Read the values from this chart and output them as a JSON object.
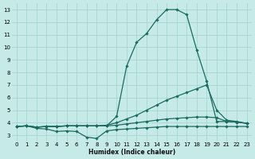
{
  "xlabel": "Humidex (Indice chaleur)",
  "bg_color": "#c5eae8",
  "grid_color": "#a8d5d2",
  "line_color": "#1a6b60",
  "xlim": [
    -0.5,
    23.5
  ],
  "ylim": [
    2.5,
    13.5
  ],
  "xticks": [
    0,
    1,
    2,
    3,
    4,
    5,
    6,
    7,
    8,
    9,
    10,
    11,
    12,
    13,
    14,
    15,
    16,
    17,
    18,
    19,
    20,
    21,
    22,
    23
  ],
  "yticks": [
    3,
    4,
    5,
    6,
    7,
    8,
    9,
    10,
    11,
    12,
    13
  ],
  "line_peak_x": [
    0,
    1,
    2,
    3,
    4,
    5,
    6,
    7,
    8,
    9,
    10,
    11,
    12,
    13,
    14,
    15,
    16,
    17,
    18,
    19,
    20,
    21,
    22,
    23
  ],
  "line_peak_y": [
    3.7,
    3.75,
    3.65,
    3.7,
    3.7,
    3.75,
    3.75,
    3.75,
    3.75,
    3.75,
    4.5,
    8.5,
    10.4,
    11.1,
    12.2,
    13.0,
    13.0,
    12.6,
    9.8,
    7.3,
    4.1,
    4.1,
    4.05,
    3.95
  ],
  "line_diag_x": [
    0,
    1,
    2,
    3,
    4,
    5,
    6,
    7,
    8,
    9,
    10,
    11,
    12,
    13,
    14,
    15,
    16,
    17,
    18,
    19,
    20,
    21,
    22,
    23
  ],
  "line_diag_y": [
    3.7,
    3.75,
    3.65,
    3.7,
    3.7,
    3.75,
    3.75,
    3.75,
    3.75,
    3.8,
    4.0,
    4.3,
    4.6,
    5.0,
    5.4,
    5.8,
    6.1,
    6.4,
    6.7,
    7.0,
    5.0,
    4.2,
    4.1,
    3.95
  ],
  "line_flat_x": [
    0,
    1,
    2,
    3,
    4,
    5,
    6,
    7,
    8,
    9,
    10,
    11,
    12,
    13,
    14,
    15,
    16,
    17,
    18,
    19,
    20,
    21,
    22,
    23
  ],
  "line_flat_y": [
    3.7,
    3.75,
    3.65,
    3.7,
    3.7,
    3.75,
    3.75,
    3.75,
    3.75,
    3.75,
    3.8,
    3.9,
    4.0,
    4.1,
    4.2,
    4.3,
    4.35,
    4.4,
    4.45,
    4.45,
    4.4,
    4.1,
    4.05,
    3.95
  ],
  "line_dip_x": [
    0,
    1,
    2,
    3,
    4,
    5,
    6,
    7,
    8,
    9,
    10,
    11,
    12,
    13,
    14,
    15,
    16,
    17,
    18,
    19,
    20,
    21,
    22,
    23
  ],
  "line_dip_y": [
    3.7,
    3.75,
    3.55,
    3.5,
    3.3,
    3.35,
    3.3,
    2.85,
    2.75,
    3.35,
    3.45,
    3.5,
    3.55,
    3.6,
    3.65,
    3.7,
    3.7,
    3.7,
    3.7,
    3.7,
    3.7,
    3.7,
    3.7,
    3.7
  ]
}
